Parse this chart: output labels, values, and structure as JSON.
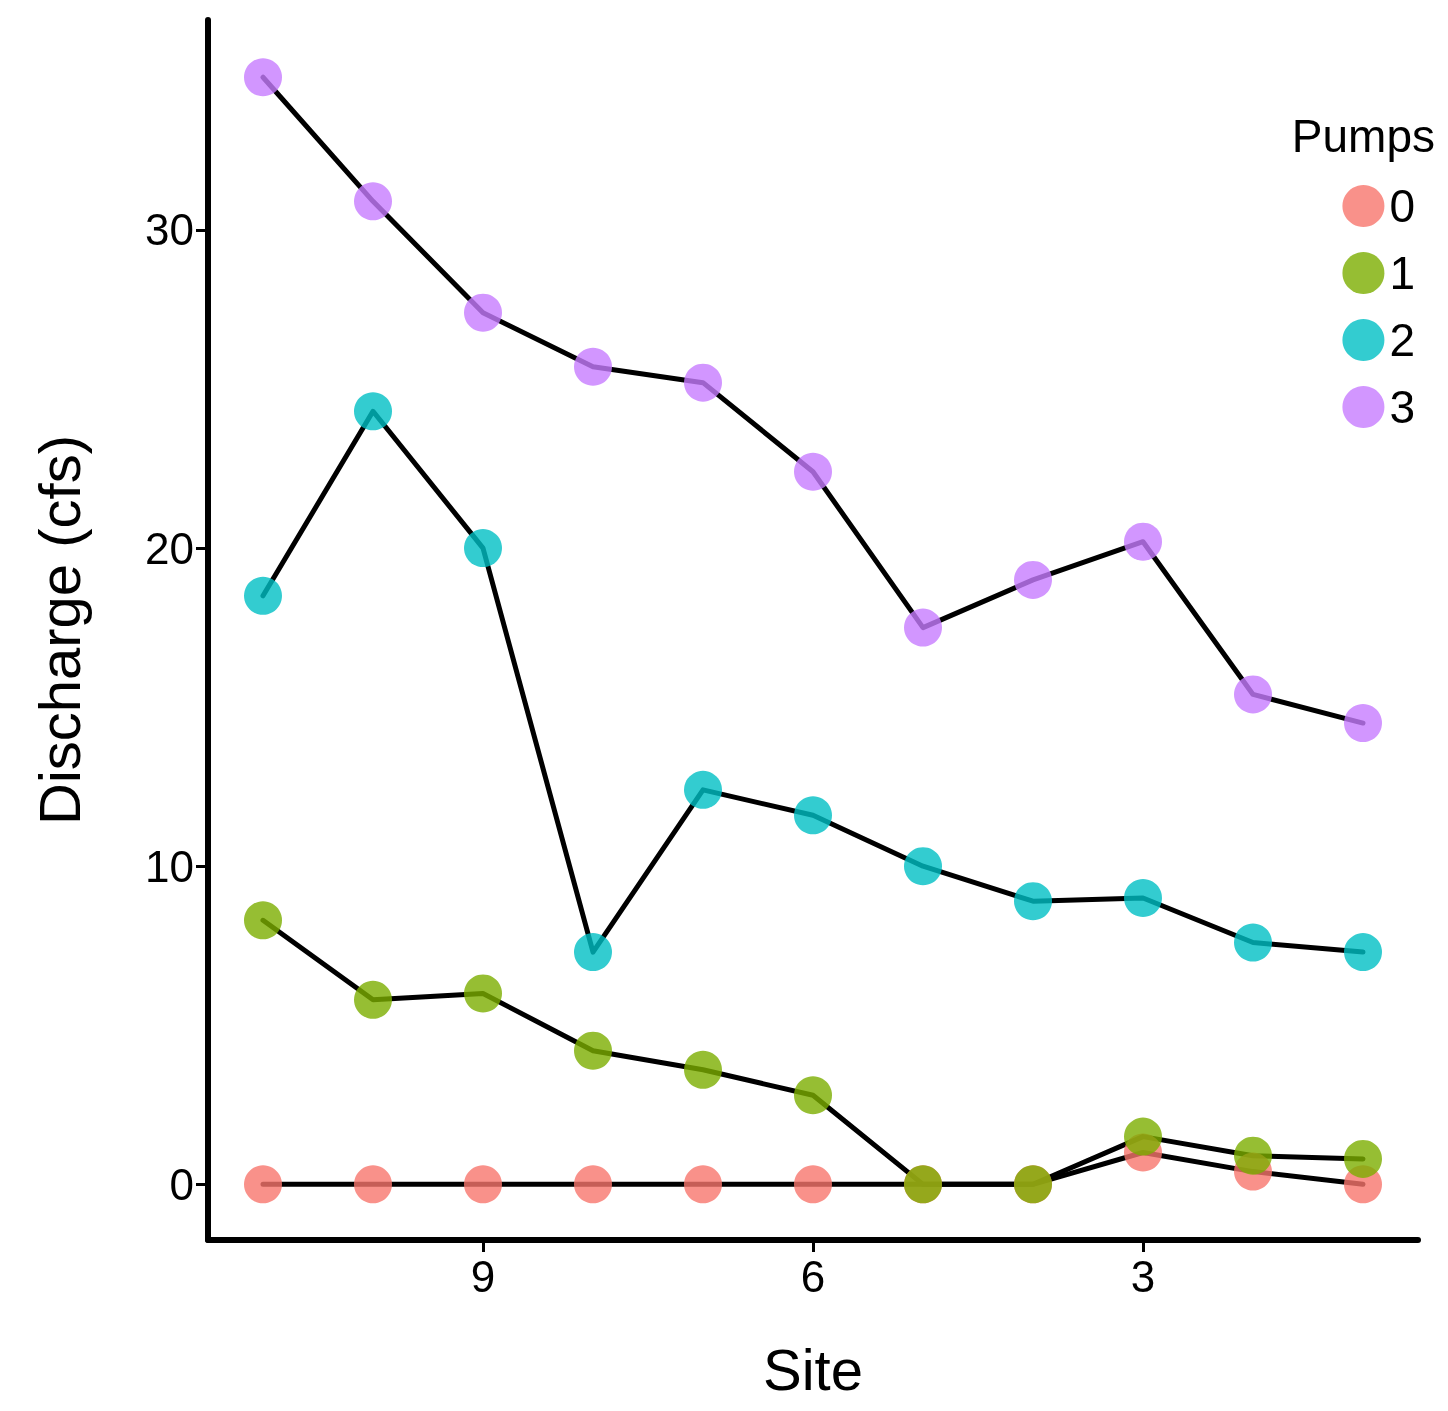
{
  "chart_data": {
    "type": "line",
    "xlabel": "Site",
    "ylabel": "Discharge (cfs)",
    "legend_title": "Pumps",
    "x": [
      11,
      10,
      9,
      8,
      7,
      6,
      5,
      4,
      3,
      2,
      1
    ],
    "series": [
      {
        "name": "0",
        "color": "#f8766d",
        "values": [
          0,
          0,
          0,
          0,
          0,
          0,
          0,
          0,
          1.0,
          0.4,
          0
        ]
      },
      {
        "name": "1",
        "color": "#7cae00",
        "values": [
          8.3,
          5.8,
          6.0,
          4.2,
          3.6,
          2.8,
          0,
          0,
          1.5,
          0.9,
          0.8
        ]
      },
      {
        "name": "2",
        "color": "#00bfc4",
        "values": [
          18.5,
          24.3,
          20.0,
          7.3,
          12.4,
          11.6,
          10.0,
          8.9,
          9.0,
          7.6,
          7.3
        ]
      },
      {
        "name": "3",
        "color": "#c77cff",
        "values": [
          34.8,
          30.9,
          27.4,
          25.7,
          25.2,
          22.4,
          17.5,
          19.0,
          20.2,
          15.4,
          14.5
        ]
      }
    ],
    "xlim": [
      11.5,
      0.5
    ],
    "xticks": [
      9,
      6,
      3
    ],
    "ylim": [
      -1.75,
      36.6
    ],
    "yticks": [
      0,
      10,
      20,
      30
    ],
    "grid": false,
    "legend": "top right",
    "marker": "circle",
    "line_style": "solid"
  }
}
